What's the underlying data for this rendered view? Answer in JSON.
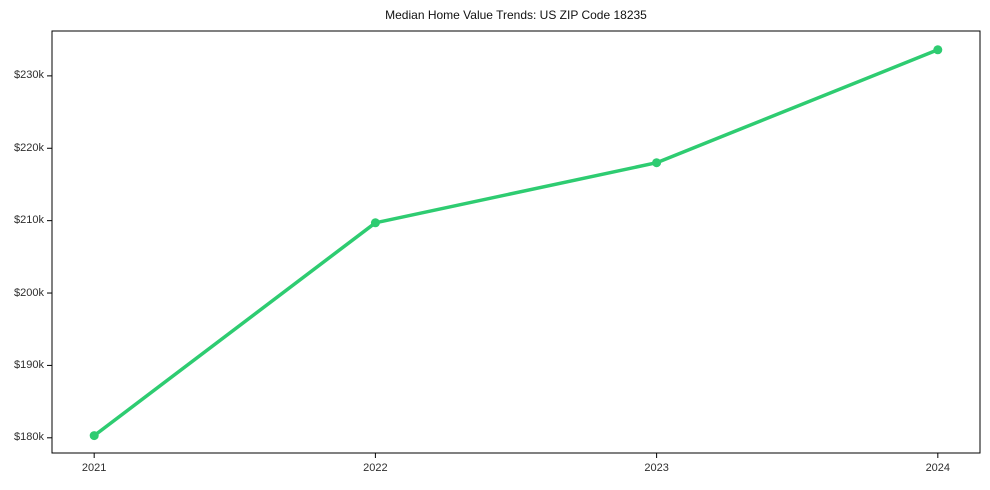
{
  "figure": {
    "background": "#ffffff"
  },
  "chart_data": {
    "type": "line",
    "title": "Median Home Value Trends: US ZIP Code 18235",
    "categories": [
      "2021",
      "2022",
      "2023",
      "2024"
    ],
    "x": [
      2021,
      2022,
      2023,
      2024
    ],
    "series": [
      {
        "name": "Median Home Value",
        "values": [
          180300,
          209700,
          218000,
          233600
        ]
      }
    ],
    "xlabel": "",
    "ylabel": "",
    "yticks": [
      180000,
      190000,
      200000,
      210000,
      220000,
      230000
    ],
    "ytick_labels": [
      "$180k",
      "$190k",
      "$200k",
      "$210k",
      "$220k",
      "$230k"
    ],
    "ylim": [
      177900,
      236200
    ],
    "xlim": [
      2020.85,
      2024.15
    ],
    "grid": false,
    "legend_position": "none",
    "line_color": "#2ecc71",
    "marker": "circle",
    "axis_color": "#000000",
    "tick_label_color": "#2e2e2e",
    "title_color": "#111111"
  }
}
